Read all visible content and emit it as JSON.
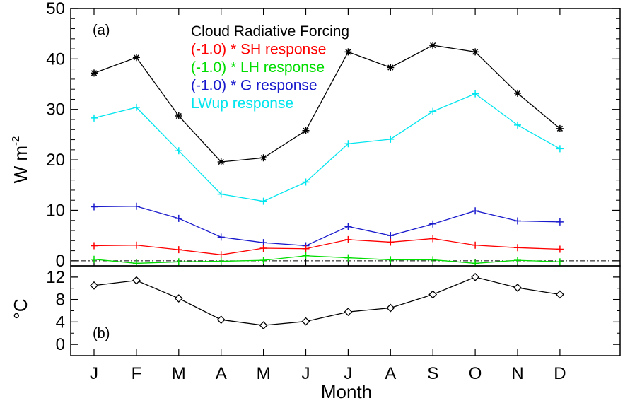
{
  "chart_data": [
    {
      "panel_label": "(a)",
      "type": "line",
      "ylabel": "W m",
      "ylabel_superscript": "-2",
      "ylim": [
        -1,
        50
      ],
      "yticks": [
        0,
        10,
        20,
        30,
        40,
        50
      ],
      "categories": [
        "J",
        "F",
        "M",
        "A",
        "M",
        "J",
        "J",
        "A",
        "S",
        "O",
        "N",
        "D"
      ],
      "zero_line": true,
      "legend_placement": "top-center",
      "series": [
        {
          "name": "Cloud Radiative Forcing",
          "color": "#000000",
          "marker": "asterisk",
          "values": [
            37.2,
            40.3,
            28.7,
            19.6,
            20.4,
            25.8,
            41.4,
            38.3,
            42.7,
            41.4,
            33.2,
            26.2
          ]
        },
        {
          "name": "(-1.0) * SH response",
          "color": "#ff0000",
          "marker": "plus",
          "values": [
            3.0,
            3.1,
            2.2,
            1.2,
            2.5,
            2.4,
            4.2,
            3.7,
            4.4,
            3.1,
            2.6,
            2.3
          ]
        },
        {
          "name": "(-1.0) * LH response",
          "color": "#00dd00",
          "marker": "plus",
          "values": [
            0.3,
            -0.5,
            -0.2,
            -0.1,
            0.1,
            1.0,
            0.6,
            0.2,
            0.2,
            -0.5,
            0.1,
            -0.2
          ]
        },
        {
          "name": "(-1.0) * G response",
          "color": "#1a1acd",
          "marker": "plus",
          "values": [
            10.7,
            10.8,
            8.4,
            4.7,
            3.6,
            3.0,
            6.8,
            5.0,
            7.3,
            9.9,
            7.9,
            7.7
          ]
        },
        {
          "name": "LWup response",
          "color": "#00e5ee",
          "marker": "plus",
          "values": [
            28.3,
            30.4,
            21.8,
            13.2,
            11.8,
            15.6,
            23.2,
            24.1,
            29.6,
            33.1,
            26.9,
            22.2
          ]
        }
      ]
    },
    {
      "panel_label": "(b)",
      "type": "line",
      "ylabel": "°C",
      "ylim": [
        -2,
        14
      ],
      "yticks": [
        0,
        4,
        8,
        12
      ],
      "categories": [
        "J",
        "F",
        "M",
        "A",
        "M",
        "J",
        "J",
        "A",
        "S",
        "O",
        "N",
        "D"
      ],
      "xlabel": "Month",
      "series": [
        {
          "color": "#000000",
          "marker": "diamond",
          "values": [
            10.5,
            11.4,
            8.2,
            4.4,
            3.4,
            4.1,
            5.8,
            6.5,
            8.9,
            12.0,
            10.1,
            8.9
          ]
        }
      ]
    }
  ]
}
